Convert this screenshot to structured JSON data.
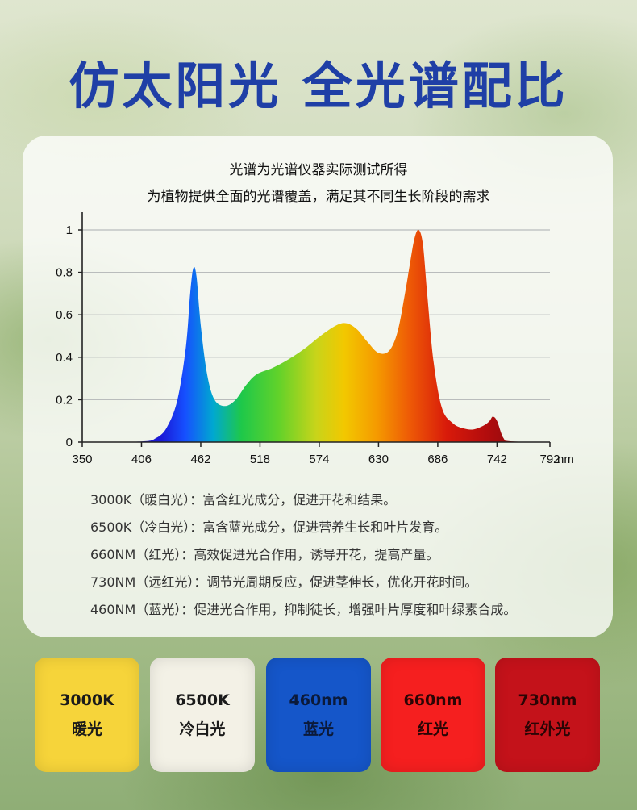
{
  "title": "仿太阳光 全光谱配比",
  "subtitle_lines": [
    "光谱为光谱仪器实际测试所得",
    "为植物提供全面的光谱覆盖，满足其不同生长阶段的需求"
  ],
  "chart_data": {
    "type": "area",
    "x_unit": "nm",
    "x_ticks": [
      350,
      406,
      462,
      518,
      574,
      630,
      686,
      742,
      792
    ],
    "y_ticks": [
      0,
      0.2,
      0.4,
      0.6,
      0.8,
      1
    ],
    "xlim": [
      350,
      792
    ],
    "ylim": [
      0,
      1
    ],
    "grid": "horizontal",
    "x": [
      350,
      406,
      420,
      430,
      440,
      448,
      452,
      455,
      458,
      462,
      468,
      475,
      485,
      495,
      505,
      515,
      530,
      545,
      560,
      575,
      590,
      600,
      610,
      620,
      630,
      640,
      648,
      655,
      660,
      664,
      668,
      672,
      676,
      682,
      690,
      700,
      710,
      720,
      730,
      735,
      738,
      742,
      748,
      755,
      792
    ],
    "y": [
      0,
      0.003,
      0.02,
      0.07,
      0.2,
      0.45,
      0.7,
      0.82,
      0.78,
      0.55,
      0.32,
      0.2,
      0.17,
      0.2,
      0.27,
      0.32,
      0.35,
      0.39,
      0.44,
      0.5,
      0.55,
      0.56,
      0.53,
      0.47,
      0.42,
      0.43,
      0.52,
      0.7,
      0.85,
      0.96,
      1.0,
      0.93,
      0.7,
      0.38,
      0.16,
      0.09,
      0.065,
      0.06,
      0.08,
      0.1,
      0.12,
      0.1,
      0.02,
      0.004,
      0
    ]
  },
  "notes": [
    {
      "label": "3000K（暖白光）：",
      "text": "富含红光成分，促进开花和结果。"
    },
    {
      "label": "6500K（冷白光）：",
      "text": "富含蓝光成分，促进营养生长和叶片发育。"
    },
    {
      "label": "660NM（红光）：",
      "text": "高效促进光合作用，诱导开花，提高产量。"
    },
    {
      "label": "730NM（远红光）：",
      "text": "调节光周期反应，促进茎伸长，优化开花时间。"
    },
    {
      "label": "460NM（蓝光）：",
      "text": "促进光合作用，抑制徒长，增强叶片厚度和叶绿素合成。"
    }
  ],
  "tiles": [
    {
      "line1": "3000K",
      "line2": "暖光",
      "color": "#f6d43a",
      "text_color": "#1a1a1a"
    },
    {
      "line1": "6500K",
      "line2": "冷白光",
      "color": "#f3f1e6",
      "text_color": "#1a1a1a"
    },
    {
      "line1": "460nm",
      "line2": "蓝光",
      "color": "#1556c9",
      "text_color": "#0b1a3a"
    },
    {
      "line1": "660nm",
      "line2": "红光",
      "color": "#f51f1f",
      "text_color": "#2a0505"
    },
    {
      "line1": "730nm",
      "line2": "红外光",
      "color": "#c4121a",
      "text_color": "#2a0505"
    }
  ]
}
